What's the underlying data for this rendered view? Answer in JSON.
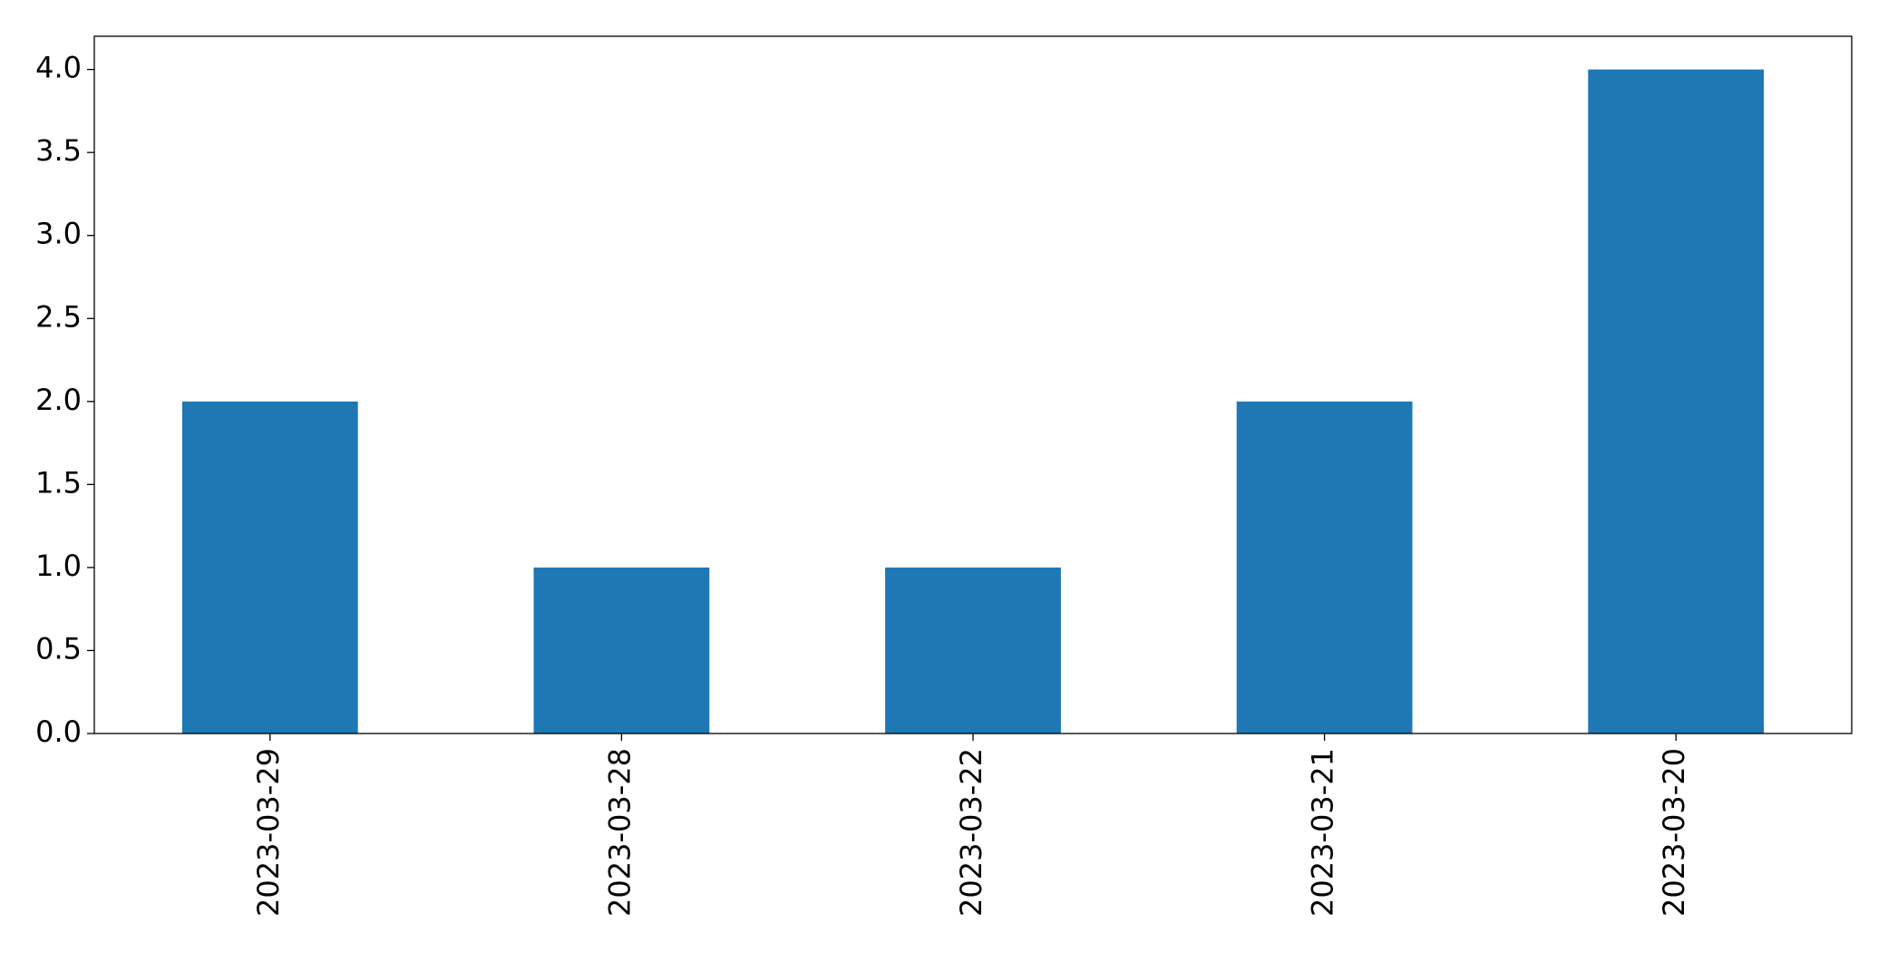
{
  "chart_data": {
    "type": "bar",
    "categories": [
      "2023-03-29",
      "2023-03-28",
      "2023-03-22",
      "2023-03-21",
      "2023-03-20"
    ],
    "values": [
      2,
      1,
      1,
      2,
      4
    ],
    "color": "#1f77b4",
    "ylim": [
      0,
      4.2
    ],
    "yticks": [
      {
        "value": 0,
        "label": "0.0"
      },
      0.5,
      {
        "value": 1,
        "label": "1.0"
      },
      1.5,
      {
        "value": 2,
        "label": "2.0"
      },
      2.5,
      {
        "value": 3,
        "label": "3.0"
      },
      3.5,
      {
        "value": 4,
        "label": "4.0"
      }
    ],
    "grid": false
  }
}
